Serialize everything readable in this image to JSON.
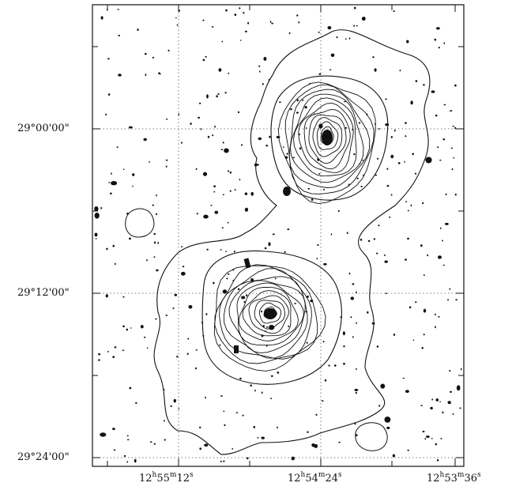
{
  "figure": {
    "dec_labels": [
      "29°00'00\"",
      "29°12'00\"",
      "29°24'00\""
    ],
    "ra_labels": [
      {
        "h": "12",
        "m": "55",
        "s": "12"
      },
      {
        "h": "12",
        "m": "54",
        "s": "24"
      },
      {
        "h": "12",
        "m": "53",
        "s": "36"
      }
    ],
    "units": {
      "h": "h",
      "m": "m",
      "s": "s"
    },
    "colors": {
      "ink": "#111111",
      "grid": "#555555",
      "background": "#ffffff"
    }
  }
}
